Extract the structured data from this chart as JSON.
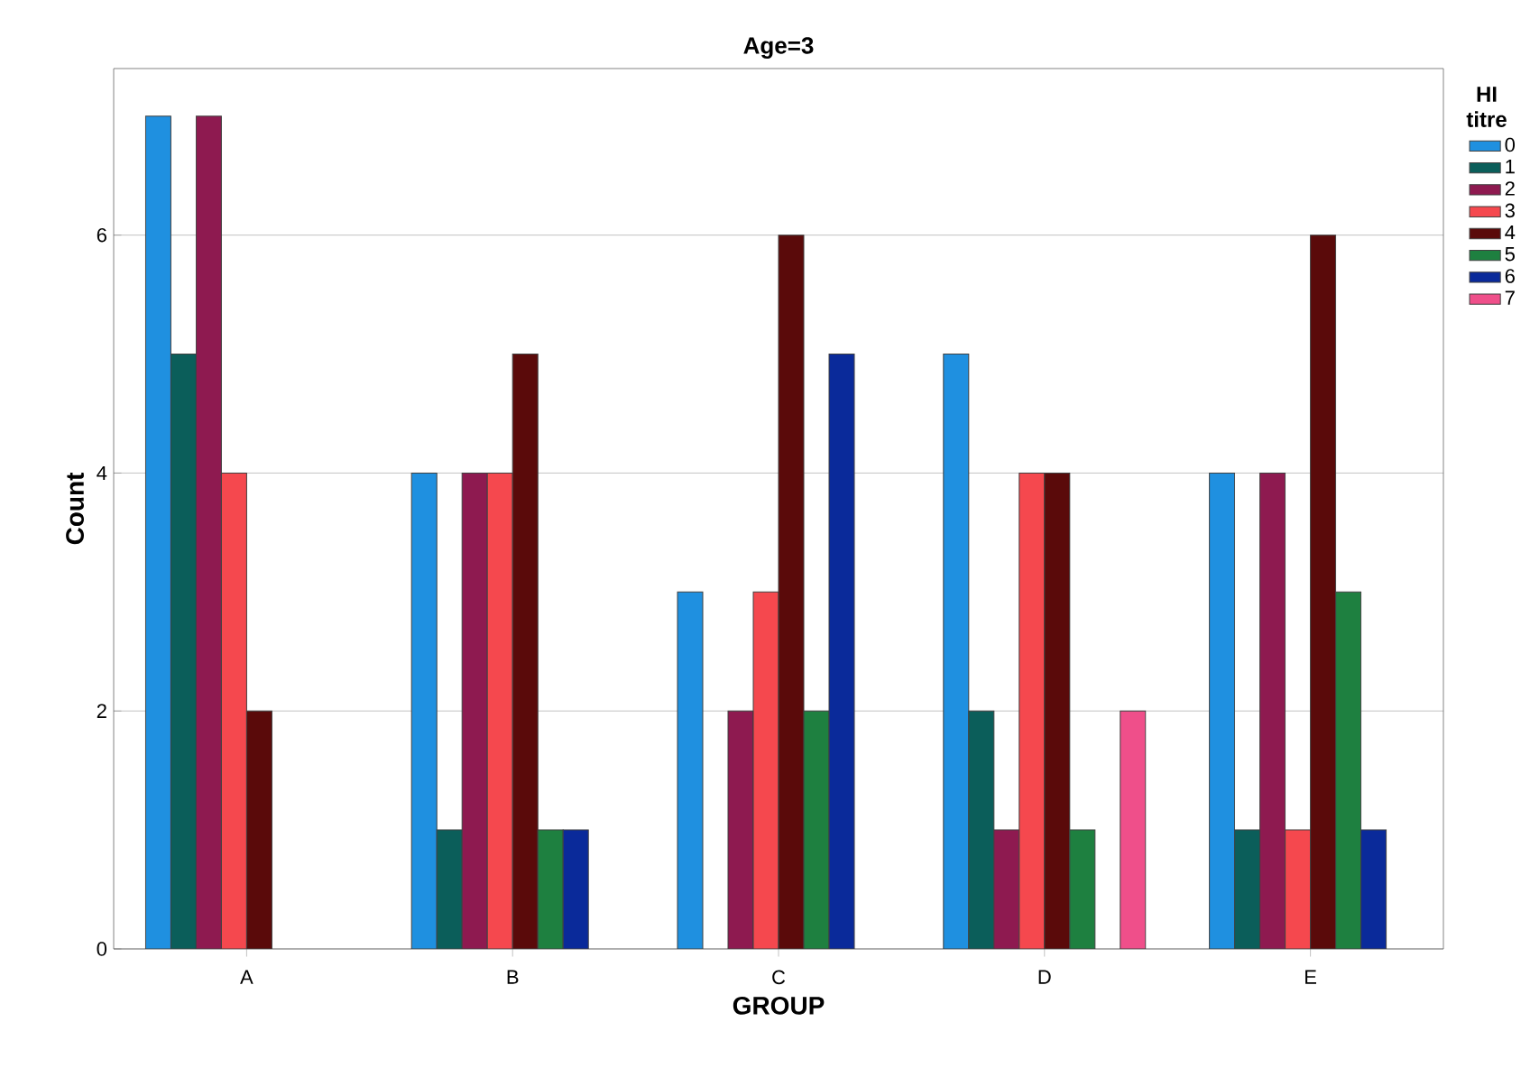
{
  "chart_data": {
    "type": "bar",
    "title": "Age=3",
    "xlabel": "GROUP",
    "ylabel": "Count",
    "legend_title": "HI titre",
    "categories": [
      "A",
      "B",
      "C",
      "D",
      "E"
    ],
    "ylim": [
      0,
      7.4
    ],
    "yticks": [
      0,
      2,
      4,
      6
    ],
    "grid": "y",
    "legend": "top right",
    "series": [
      {
        "name": "0",
        "color": "#1f90e0",
        "values": [
          7,
          4,
          3,
          5,
          4
        ]
      },
      {
        "name": "1",
        "color": "#0b5e5a",
        "values": [
          5,
          1,
          null,
          2,
          1
        ]
      },
      {
        "name": "2",
        "color": "#8e1a50",
        "values": [
          7,
          4,
          2,
          1,
          4
        ]
      },
      {
        "name": "3",
        "color": "#f5484e",
        "values": [
          4,
          4,
          3,
          4,
          1
        ]
      },
      {
        "name": "4",
        "color": "#5a0a0a",
        "values": [
          2,
          5,
          6,
          4,
          6
        ]
      },
      {
        "name": "5",
        "color": "#1e8040",
        "values": [
          null,
          1,
          2,
          1,
          3
        ]
      },
      {
        "name": "6",
        "color": "#0a2a9a",
        "values": [
          null,
          1,
          5,
          null,
          1
        ]
      },
      {
        "name": "7",
        "color": "#ef4f8a",
        "values": [
          null,
          null,
          null,
          2,
          null
        ]
      }
    ]
  }
}
